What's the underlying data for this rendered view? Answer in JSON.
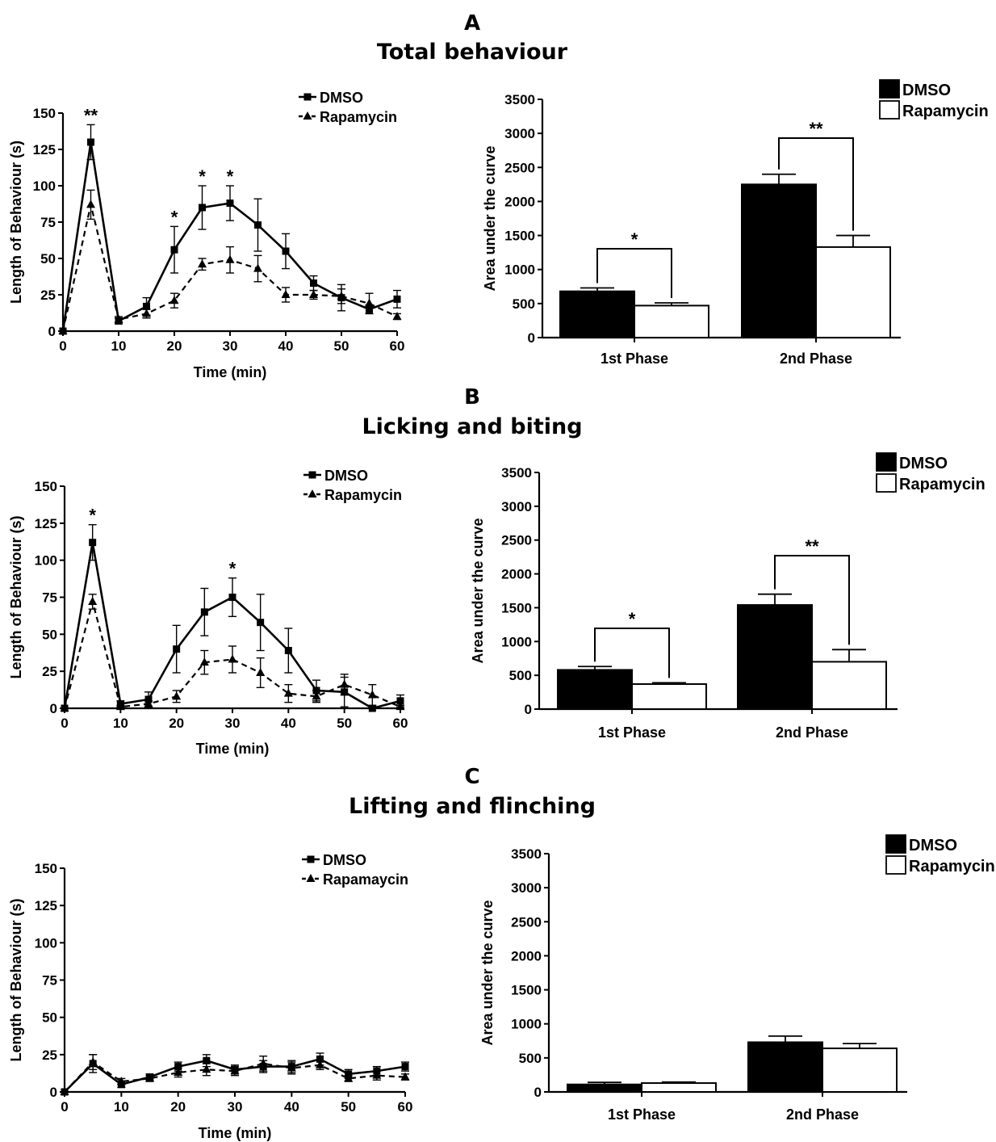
{
  "panels": [
    {
      "letter": "A",
      "title": "Total behaviour",
      "line_legend": [
        "DMSO",
        "Rapamycin"
      ],
      "bar_legend": [
        "DMSO",
        "Rapamycin"
      ]
    },
    {
      "letter": "B",
      "title": "Licking and biting",
      "line_legend": [
        "DMSO",
        "Rapamycin"
      ],
      "bar_legend": [
        "DMSO",
        "Rapamycin"
      ]
    },
    {
      "letter": "C",
      "title": "Lifting and flinching",
      "line_legend": [
        "DMSO",
        "Rapamaycin"
      ],
      "bar_legend": [
        "DMSO",
        "Rapamycin"
      ]
    }
  ],
  "colors": {
    "dmso": "#000000",
    "rapamycin": "#ffffff",
    "axis": "#000000"
  },
  "chart_data": [
    {
      "type": "line",
      "panel": "A",
      "xlabel": "Time (min)",
      "ylabel": "Length of Behaviour (s)",
      "xlim": [
        0,
        60
      ],
      "ylim": [
        0,
        150
      ],
      "xticks": [
        0,
        10,
        20,
        30,
        40,
        50,
        60
      ],
      "yticks": [
        0,
        25,
        50,
        75,
        100,
        125,
        150
      ],
      "legend_position": "top-right",
      "x": [
        0,
        5,
        10,
        15,
        20,
        25,
        30,
        35,
        40,
        45,
        50,
        55,
        60
      ],
      "series": [
        {
          "name": "DMSO",
          "marker": "square",
          "style": "solid",
          "values": [
            0,
            130,
            7,
            17,
            56,
            85,
            88,
            73,
            55,
            33,
            23,
            15,
            22
          ],
          "errors": [
            0,
            12,
            2,
            6,
            16,
            15,
            12,
            18,
            12,
            5,
            9,
            3,
            6
          ]
        },
        {
          "name": "Rapamycin",
          "marker": "triangle",
          "style": "dashed",
          "values": [
            0,
            87,
            8,
            12,
            21,
            46,
            49,
            43,
            25,
            25,
            24,
            19,
            10
          ],
          "errors": [
            0,
            10,
            2,
            3,
            5,
            4,
            9,
            9,
            5,
            3,
            5,
            7,
            2
          ]
        }
      ],
      "annotations": [
        {
          "x": 5,
          "text": "**"
        },
        {
          "x": 20,
          "text": "*"
        },
        {
          "x": 25,
          "text": "*"
        },
        {
          "x": 30,
          "text": "*"
        }
      ]
    },
    {
      "type": "bar",
      "panel": "A",
      "ylabel": "Area under the curve",
      "ylim": [
        0,
        3500
      ],
      "yticks": [
        0,
        500,
        1000,
        1500,
        2000,
        2500,
        3000,
        3500
      ],
      "categories": [
        "1st Phase",
        "2nd Phase"
      ],
      "legend_position": "top-right",
      "series": [
        {
          "name": "DMSO",
          "values": [
            680,
            2250
          ],
          "errors": [
            50,
            150
          ]
        },
        {
          "name": "Rapamycin",
          "values": [
            470,
            1330
          ],
          "errors": [
            40,
            170
          ]
        }
      ],
      "annotations": [
        {
          "category": "1st Phase",
          "text": "*"
        },
        {
          "category": "2nd Phase",
          "text": "**"
        }
      ]
    },
    {
      "type": "line",
      "panel": "B",
      "xlabel": "Time (min)",
      "ylabel": "Length of Behaviour (s)",
      "xlim": [
        0,
        60
      ],
      "ylim": [
        0,
        150
      ],
      "xticks": [
        0,
        10,
        20,
        30,
        40,
        50,
        60
      ],
      "yticks": [
        0,
        25,
        50,
        75,
        100,
        125,
        150
      ],
      "legend_position": "top-right",
      "x": [
        0,
        5,
        10,
        15,
        20,
        25,
        30,
        35,
        40,
        45,
        50,
        55,
        60
      ],
      "series": [
        {
          "name": "DMSO",
          "marker": "square",
          "style": "solid",
          "values": [
            0,
            112,
            3,
            6,
            40,
            65,
            75,
            58,
            39,
            12,
            11,
            0,
            5
          ],
          "errors": [
            0,
            12,
            2,
            5,
            16,
            16,
            13,
            19,
            15,
            7,
            10,
            0,
            4
          ]
        },
        {
          "name": "Rapamycin",
          "marker": "triangle",
          "style": "dashed",
          "values": [
            0,
            72,
            1,
            3,
            8,
            31,
            33,
            24,
            10,
            8,
            16,
            9,
            1
          ],
          "errors": [
            0,
            5,
            1,
            2,
            4,
            8,
            9,
            10,
            6,
            4,
            7,
            7,
            1
          ]
        }
      ],
      "annotations": [
        {
          "x": 5,
          "text": "*"
        },
        {
          "x": 30,
          "text": "*"
        }
      ]
    },
    {
      "type": "bar",
      "panel": "B",
      "ylabel": "Area under the curve",
      "ylim": [
        0,
        3500
      ],
      "yticks": [
        0,
        500,
        1000,
        1500,
        2000,
        2500,
        3000,
        3500
      ],
      "categories": [
        "1st Phase",
        "2nd Phase"
      ],
      "legend_position": "top-right",
      "series": [
        {
          "name": "DMSO",
          "values": [
            580,
            1540
          ],
          "errors": [
            50,
            160
          ]
        },
        {
          "name": "Rapamycin",
          "values": [
            370,
            700
          ],
          "errors": [
            20,
            180
          ]
        }
      ],
      "annotations": [
        {
          "category": "1st Phase",
          "text": "*"
        },
        {
          "category": "2nd Phase",
          "text": "**"
        }
      ]
    },
    {
      "type": "line",
      "panel": "C",
      "xlabel": "Time (min)",
      "ylabel": "Length of Behaviour (s)",
      "xlim": [
        0,
        60
      ],
      "ylim": [
        0,
        150
      ],
      "xticks": [
        0,
        10,
        20,
        30,
        40,
        50,
        60
      ],
      "yticks": [
        0,
        25,
        50,
        75,
        100,
        125,
        150
      ],
      "legend_position": "top-right",
      "x": [
        0,
        5,
        10,
        15,
        20,
        25,
        30,
        35,
        40,
        45,
        50,
        55,
        60
      ],
      "series": [
        {
          "name": "DMSO",
          "marker": "square",
          "style": "solid",
          "values": [
            0,
            19,
            5,
            10,
            17,
            21,
            15,
            17,
            17,
            22,
            12,
            14,
            17
          ],
          "errors": [
            0,
            6,
            2,
            2,
            3,
            4,
            3,
            4,
            4,
            4,
            3,
            3,
            3
          ]
        },
        {
          "name": "Rapamaycin",
          "marker": "triangle",
          "style": "dashed",
          "values": [
            0,
            20,
            7,
            9,
            13,
            15,
            14,
            19,
            16,
            18,
            9,
            11,
            10
          ],
          "errors": [
            0,
            5,
            2,
            2,
            3,
            4,
            3,
            5,
            4,
            3,
            2,
            3,
            2
          ]
        }
      ],
      "annotations": []
    },
    {
      "type": "bar",
      "panel": "C",
      "ylabel": "Area under the curve",
      "ylim": [
        0,
        3500
      ],
      "yticks": [
        0,
        500,
        1000,
        1500,
        2000,
        2500,
        3000,
        3500
      ],
      "categories": [
        "1st Phase",
        "2nd Phase"
      ],
      "legend_position": "top-right",
      "series": [
        {
          "name": "DMSO",
          "values": [
            110,
            730
          ],
          "errors": [
            30,
            90
          ]
        },
        {
          "name": "Rapamycin",
          "values": [
            130,
            640
          ],
          "errors": [
            15,
            70
          ]
        }
      ],
      "annotations": []
    }
  ]
}
